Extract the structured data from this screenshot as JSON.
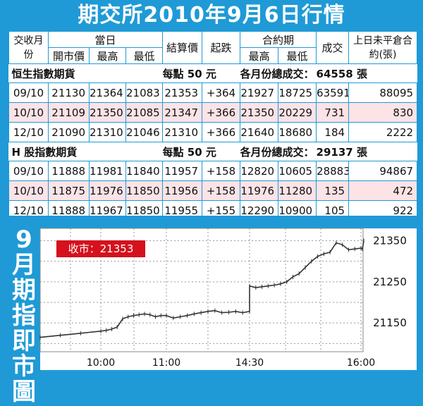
{
  "title": "期交所2010年9月6日行情",
  "table": {
    "headers": {
      "month": "交收月份",
      "today": "當日",
      "open": "開市價",
      "high": "最高",
      "low": "最低",
      "settle": "結算價",
      "change": "起跌",
      "contract": "合約期",
      "c_high": "最高",
      "c_low": "最低",
      "volume": "成交",
      "oi": "上日未平倉合約(張)"
    },
    "sections": [
      {
        "name": "恒生指數期貨",
        "point_value": "每點 50 元",
        "total_label": "各月份總成交：",
        "total_value": "64558 張",
        "rows": [
          {
            "month": "09/10",
            "open": "21130",
            "high": "21364",
            "low": "21083",
            "settle": "21353",
            "change": "+364",
            "c_high": "21927",
            "c_low": "18725",
            "volume": "63591",
            "oi": "88095"
          },
          {
            "month": "10/10",
            "open": "21109",
            "high": "21350",
            "low": "21085",
            "settle": "21347",
            "change": "+366",
            "c_high": "21350",
            "c_low": "20229",
            "volume": "731",
            "oi": "830"
          },
          {
            "month": "12/10",
            "open": "21090",
            "high": "21310",
            "low": "21046",
            "settle": "21310",
            "change": "+366",
            "c_high": "21640",
            "c_low": "18680",
            "volume": "184",
            "oi": "2222"
          }
        ]
      },
      {
        "name": "H 股指數期貨",
        "point_value": "每點 50 元",
        "total_label": "各月份總成交：",
        "total_value": "29137 張",
        "rows": [
          {
            "month": "09/10",
            "open": "11888",
            "high": "11981",
            "low": "11840",
            "settle": "11957",
            "change": "+158",
            "c_high": "12820",
            "c_low": "10605",
            "volume": "28883",
            "oi": "94867"
          },
          {
            "month": "10/10",
            "open": "11875",
            "high": "11976",
            "low": "11850",
            "settle": "11956",
            "change": "+158",
            "c_high": "11976",
            "c_low": "11280",
            "volume": "135",
            "oi": "472"
          },
          {
            "month": "12/10",
            "open": "11888",
            "high": "11967",
            "low": "11850",
            "settle": "11955",
            "change": "+155",
            "c_high": "12290",
            "c_low": "10900",
            "volume": "105",
            "oi": "922"
          }
        ]
      }
    ]
  },
  "chart_data": {
    "type": "line",
    "title": "9月期指即市圖",
    "close_label": "收市：21353",
    "x_ticks": [
      "10:00",
      "11:00",
      "14:30",
      "16:00"
    ],
    "y_ticks": [
      21150,
      21250,
      21350
    ],
    "ylim": [
      21080,
      21380
    ],
    "x": [
      "09:45",
      "09:50",
      "09:55",
      "10:00",
      "10:05",
      "10:10",
      "10:15",
      "10:20",
      "10:25",
      "10:30",
      "10:35",
      "10:40",
      "10:45",
      "10:50",
      "10:55",
      "11:00",
      "11:05",
      "11:10",
      "11:15",
      "11:20",
      "11:25",
      "11:30",
      "11:35",
      "11:40",
      "11:45",
      "11:50",
      "11:55",
      "12:00",
      "14:30",
      "14:35",
      "14:40",
      "14:45",
      "14:50",
      "14:55",
      "15:00",
      "15:05",
      "15:10",
      "15:15",
      "15:20",
      "15:25",
      "15:30",
      "15:35",
      "15:40",
      "15:45",
      "15:50",
      "15:55",
      "16:00",
      "16:05",
      "16:10"
    ],
    "values": [
      21115,
      21120,
      21125,
      21130,
      21132,
      21135,
      21140,
      21160,
      21165,
      21168,
      21170,
      21172,
      21170,
      21165,
      21168,
      21168,
      21162,
      21165,
      21168,
      21172,
      21175,
      21178,
      21180,
      21175,
      21176,
      21178,
      21175,
      21178,
      21240,
      21236,
      21238,
      21240,
      21242,
      21245,
      21250,
      21262,
      21270,
      21285,
      21300,
      21312,
      21318,
      21322,
      21345,
      21340,
      21328,
      21330,
      21332,
      21330,
      21350
    ],
    "grid": true,
    "line_color": "#333333"
  }
}
